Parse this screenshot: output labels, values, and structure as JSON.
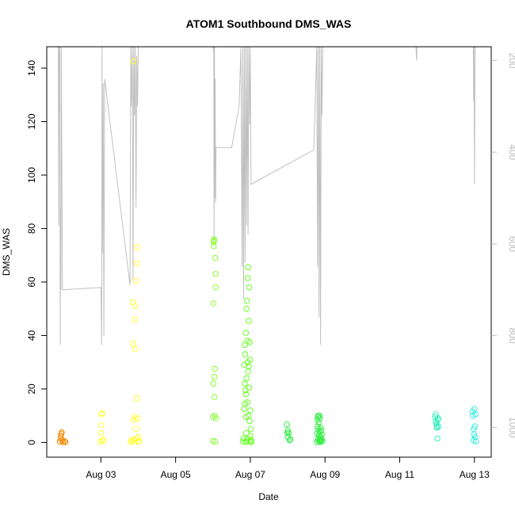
{
  "chart_data": {
    "type": "scatter",
    "title": "ATOM1 Southbound DMS_WAS",
    "xlabel": "Date",
    "ylabel": "DMS_WAS",
    "x_unit": "days in August",
    "xlim": [
      1.55,
      13.45
    ],
    "ylim": [
      -5.5,
      148
    ],
    "x_ticks": [
      {
        "value": 3,
        "label": "Aug 03"
      },
      {
        "value": 5,
        "label": "Aug 05"
      },
      {
        "value": 7,
        "label": "Aug 07"
      },
      {
        "value": 9,
        "label": "Aug 09"
      },
      {
        "value": 11,
        "label": "Aug 11"
      },
      {
        "value": 13,
        "label": "Aug 13"
      }
    ],
    "y_ticks": [
      0,
      20,
      40,
      60,
      80,
      100,
      120,
      140
    ],
    "y2_ticks": [
      200,
      400,
      600,
      800,
      1000
    ],
    "y2_lim": [
      1065,
      170
    ],
    "grid": false,
    "legend": "none",
    "series": [
      {
        "color": "#ee8a00",
        "points": [
          [
            1.9,
            0.3
          ],
          [
            1.92,
            1.5
          ],
          [
            1.93,
            2.5
          ],
          [
            1.94,
            3.2
          ],
          [
            1.95,
            3.8
          ],
          [
            1.96,
            0.8
          ],
          [
            1.98,
            0.2
          ],
          [
            2.02,
            0.5
          ],
          [
            2.05,
            0.1
          ]
        ]
      },
      {
        "color": "#ffff33",
        "points": [
          [
            2.98,
            0.3
          ],
          [
            3.0,
            3.5
          ],
          [
            3.01,
            6.5
          ],
          [
            3.02,
            10.5
          ],
          [
            3.03,
            11.0
          ],
          [
            3.05,
            0.6
          ],
          [
            3.07,
            1.0
          ],
          [
            3.8,
            0.2
          ],
          [
            3.82,
            1.0
          ],
          [
            3.84,
            0.5
          ],
          [
            3.85,
            52.5
          ],
          [
            3.86,
            37.0
          ],
          [
            3.87,
            142.5
          ],
          [
            3.88,
            8.5
          ],
          [
            3.89,
            0.8
          ],
          [
            3.9,
            9.5
          ],
          [
            3.91,
            46.0
          ],
          [
            3.92,
            51.0
          ],
          [
            3.92,
            35.0
          ],
          [
            3.93,
            60.5
          ],
          [
            3.94,
            5.0
          ],
          [
            3.95,
            1.5
          ],
          [
            3.96,
            16.5
          ],
          [
            3.96,
            67.0
          ],
          [
            3.97,
            73.0
          ],
          [
            3.98,
            9.0
          ],
          [
            3.99,
            0.3
          ],
          [
            4.0,
            2.0
          ],
          [
            4.02,
            0.6
          ]
        ]
      },
      {
        "color": "#88ff33",
        "points": [
          [
            6.0,
            0.6
          ],
          [
            6.0,
            9.5
          ],
          [
            6.01,
            52.0
          ],
          [
            6.01,
            22.0
          ],
          [
            6.02,
            73.5
          ],
          [
            6.02,
            75.0
          ],
          [
            6.03,
            76.0
          ],
          [
            6.03,
            75.5
          ],
          [
            6.04,
            24.5
          ],
          [
            6.04,
            17.0
          ],
          [
            6.05,
            27.5
          ],
          [
            6.05,
            10.0
          ],
          [
            6.06,
            0.3
          ],
          [
            6.06,
            69.0
          ],
          [
            6.07,
            63.0
          ],
          [
            6.07,
            58.0
          ],
          [
            6.08,
            9.0
          ]
        ]
      },
      {
        "color": "#66ff22",
        "points": [
          [
            6.8,
            0.4
          ],
          [
            6.82,
            1.5
          ],
          [
            6.83,
            12.5
          ],
          [
            6.84,
            29.0
          ],
          [
            6.85,
            36.5
          ],
          [
            6.85,
            22.0
          ],
          [
            6.86,
            33.0
          ],
          [
            6.86,
            14.5
          ],
          [
            6.87,
            19.5
          ],
          [
            6.87,
            0.2
          ],
          [
            6.88,
            41.0
          ],
          [
            6.88,
            9.5
          ],
          [
            6.89,
            18.0
          ],
          [
            6.89,
            3.5
          ],
          [
            6.9,
            50.0
          ],
          [
            6.9,
            24.0
          ],
          [
            6.91,
            53.0
          ],
          [
            6.91,
            0.7
          ],
          [
            6.92,
            38.0
          ],
          [
            6.92,
            15.0
          ],
          [
            6.93,
            30.0
          ],
          [
            6.93,
            61.5
          ],
          [
            6.94,
            65.5
          ],
          [
            6.94,
            26.5
          ],
          [
            6.95,
            10.0
          ],
          [
            6.95,
            1.5
          ],
          [
            6.96,
            45.5
          ],
          [
            6.96,
            28.5
          ],
          [
            6.97,
            58.0
          ],
          [
            6.97,
            20.5
          ],
          [
            6.98,
            37.5
          ],
          [
            6.98,
            8.0
          ],
          [
            6.99,
            31.0
          ],
          [
            6.99,
            0.3
          ],
          [
            7.0,
            2.5
          ],
          [
            7.0,
            12.0
          ],
          [
            7.01,
            5.0
          ],
          [
            7.02,
            0.8
          ],
          [
            7.03,
            0.2
          ]
        ]
      },
      {
        "color": "#33ee44",
        "points": [
          [
            7.98,
            6.8
          ],
          [
            7.99,
            3.5
          ],
          [
            8.0,
            4.5
          ],
          [
            8.01,
            2.0
          ],
          [
            8.03,
            3.5
          ],
          [
            8.05,
            0.8
          ],
          [
            8.07,
            1.2
          ],
          [
            8.78,
            0.2
          ],
          [
            8.79,
            3.5
          ],
          [
            8.8,
            6.0
          ],
          [
            8.8,
            8.5
          ],
          [
            8.81,
            1.5
          ],
          [
            8.81,
            9.5
          ],
          [
            8.82,
            10.0
          ],
          [
            8.82,
            5.0
          ],
          [
            8.83,
            0.6
          ],
          [
            8.83,
            7.5
          ],
          [
            8.84,
            2.5
          ],
          [
            8.84,
            3.0
          ],
          [
            8.85,
            10.0
          ],
          [
            8.85,
            0.4
          ],
          [
            8.86,
            9.0
          ],
          [
            8.86,
            4.0
          ],
          [
            8.87,
            1.0
          ],
          [
            8.87,
            0.2
          ],
          [
            8.88,
            5.5
          ],
          [
            8.88,
            2.0
          ],
          [
            8.89,
            0.7
          ],
          [
            8.9,
            4.5
          ],
          [
            8.91,
            1.2
          ],
          [
            8.92,
            3.0
          ],
          [
            8.93,
            0.5
          ]
        ]
      },
      {
        "color": "#33eebb",
        "points": [
          [
            11.95,
            9.5
          ],
          [
            11.96,
            10.5
          ],
          [
            11.97,
            8.0
          ],
          [
            11.98,
            7.0
          ],
          [
            11.99,
            6.0
          ],
          [
            12.0,
            5.5
          ],
          [
            12.01,
            1.5
          ],
          [
            12.02,
            8.5
          ],
          [
            12.03,
            9.0
          ],
          [
            12.04,
            6.0
          ]
        ]
      },
      {
        "color": "#33eedd",
        "points": [
          [
            12.95,
            11.5
          ],
          [
            12.96,
            10.0
          ],
          [
            12.97,
            0.8
          ],
          [
            12.98,
            5.0
          ],
          [
            12.99,
            3.0
          ],
          [
            13.0,
            12.5
          ],
          [
            13.01,
            6.0
          ],
          [
            13.02,
            2.0
          ],
          [
            13.03,
            10.5
          ],
          [
            13.04,
            0.4
          ]
        ]
      }
    ],
    "secondary_line": {
      "color": "#c0c0c0",
      "points": [
        [
          1.85,
          30
        ],
        [
          1.86,
          170
        ],
        [
          1.87,
          560
        ],
        [
          1.88,
          170
        ],
        [
          1.89,
          310
        ],
        [
          1.9,
          170
        ],
        [
          1.91,
          820
        ],
        [
          1.92,
          520
        ],
        [
          1.93,
          700
        ],
        [
          1.94,
          170
        ],
        [
          1.97,
          700
        ],
        [
          3.0,
          695
        ],
        [
          3.02,
          820
        ],
        [
          3.03,
          170
        ],
        [
          3.04,
          620
        ],
        [
          3.06,
          250
        ],
        [
          3.08,
          800
        ],
        [
          3.1,
          240
        ],
        [
          3.78,
          690
        ],
        [
          3.8,
          170
        ],
        [
          3.82,
          300
        ],
        [
          3.84,
          170
        ],
        [
          3.86,
          680
        ],
        [
          3.88,
          170
        ],
        [
          3.9,
          320
        ],
        [
          3.92,
          170
        ],
        [
          3.94,
          520
        ],
        [
          3.96,
          190
        ],
        [
          3.98,
          300
        ],
        [
          4.0,
          170
        ],
        [
          4.2,
          100
        ],
        [
          5.95,
          40
        ],
        [
          6.0,
          170
        ],
        [
          6.01,
          180
        ],
        [
          6.02,
          120
        ],
        [
          6.03,
          600
        ],
        [
          6.04,
          170
        ],
        [
          6.05,
          500
        ],
        [
          6.06,
          240
        ],
        [
          6.07,
          510
        ],
        [
          6.08,
          390
        ],
        [
          6.5,
          390
        ],
        [
          6.7,
          300
        ],
        [
          6.75,
          170
        ],
        [
          6.78,
          650
        ],
        [
          6.8,
          170
        ],
        [
          6.82,
          720
        ],
        [
          6.84,
          170
        ],
        [
          6.86,
          640
        ],
        [
          6.88,
          170
        ],
        [
          6.9,
          560
        ],
        [
          6.92,
          170
        ],
        [
          6.94,
          580
        ],
        [
          6.96,
          170
        ],
        [
          6.98,
          340
        ],
        [
          7.0,
          170
        ],
        [
          7.02,
          470
        ],
        [
          8.7,
          395
        ],
        [
          8.78,
          170
        ],
        [
          8.8,
          650
        ],
        [
          8.82,
          170
        ],
        [
          8.84,
          760
        ],
        [
          8.86,
          170
        ],
        [
          8.88,
          820
        ],
        [
          8.9,
          170
        ],
        [
          8.92,
          320
        ],
        [
          8.94,
          170
        ],
        [
          11.4,
          100
        ],
        [
          11.45,
          200
        ],
        [
          11.5,
          100
        ],
        [
          12.42,
          160
        ],
        [
          12.44,
          170
        ],
        [
          12.46,
          100
        ],
        [
          12.95,
          110
        ],
        [
          12.97,
          170
        ],
        [
          12.98,
          290
        ],
        [
          12.99,
          170
        ],
        [
          13.0,
          470
        ],
        [
          13.02,
          170
        ],
        [
          13.4,
          100
        ]
      ]
    }
  }
}
